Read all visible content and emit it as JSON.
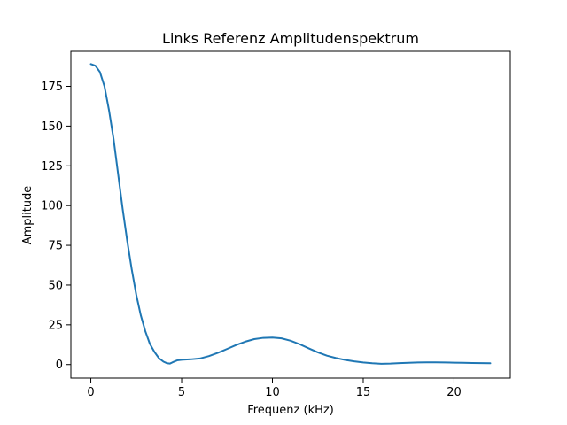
{
  "chart_data": {
    "type": "line",
    "title": "Links Referenz Amplitudenspektrum",
    "xlabel": "Frequenz (kHz)",
    "ylabel": "Amplitude",
    "xlim": [
      -1.1,
      23.1
    ],
    "ylim": [
      -8.5,
      197
    ],
    "xticks": [
      0,
      5,
      10,
      15,
      20
    ],
    "yticks": [
      0,
      25,
      50,
      75,
      100,
      125,
      150,
      175
    ],
    "grid": false,
    "series": [
      {
        "color": "#1f77b4",
        "x": [
          0,
          0.25,
          0.5,
          0.75,
          1,
          1.25,
          1.5,
          1.75,
          2,
          2.25,
          2.5,
          2.75,
          3,
          3.25,
          3.5,
          3.75,
          4,
          4.2,
          4.35,
          4.5,
          4.75,
          5,
          5.5,
          6,
          6.5,
          7,
          7.5,
          8,
          8.5,
          9,
          9.5,
          10,
          10.5,
          11,
          11.5,
          12,
          12.5,
          13,
          13.5,
          14,
          14.5,
          15,
          15.5,
          16,
          16.5,
          17,
          17.5,
          18,
          18.5,
          19,
          19.5,
          20,
          20.5,
          21,
          21.5,
          22
        ],
        "y": [
          189,
          188,
          184,
          175,
          160,
          142,
          120,
          98,
          78,
          60,
          44,
          31,
          21,
          13,
          8,
          4,
          1.8,
          0.8,
          0.6,
          1.4,
          2.6,
          3.0,
          3.3,
          3.8,
          5.3,
          7.4,
          9.8,
          12.3,
          14.4,
          16.0,
          16.8,
          17.0,
          16.5,
          15.0,
          12.8,
          10.2,
          7.7,
          5.6,
          4.1,
          2.9,
          2.0,
          1.3,
          0.8,
          0.5,
          0.6,
          0.9,
          1.1,
          1.3,
          1.4,
          1.4,
          1.3,
          1.2,
          1.1,
          1.0,
          0.9,
          0.8
        ]
      }
    ]
  }
}
